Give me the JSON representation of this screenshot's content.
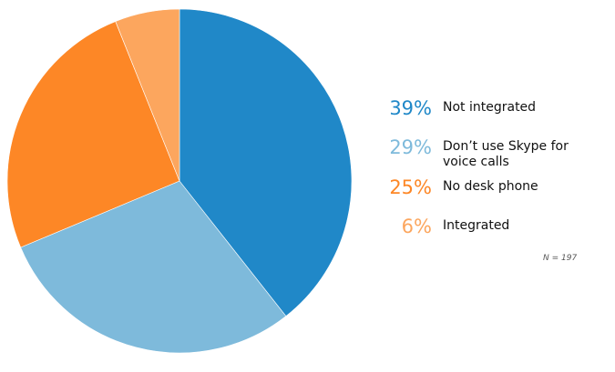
{
  "chart_data": {
    "type": "pie",
    "start_angle_deg": 0,
    "direction": "clockwise",
    "slices": [
      {
        "label": "Not integrated",
        "percent_label": "39%",
        "value": 39,
        "color": "#2088c8",
        "text_color": "#2088c8"
      },
      {
        "label": "Don’t use Skype for voice calls",
        "percent_label": "29%",
        "value": 29,
        "color": "#7ebadb",
        "text_color": "#7ebadb"
      },
      {
        "label": "No desk phone",
        "percent_label": "25%",
        "value": 25,
        "color": "#fd8726",
        "text_color": "#fd8726"
      },
      {
        "label": "Integrated",
        "percent_label": "6%",
        "value": 6,
        "color": "#fca65e",
        "text_color": "#fca65e"
      }
    ],
    "note": "N = 197"
  }
}
